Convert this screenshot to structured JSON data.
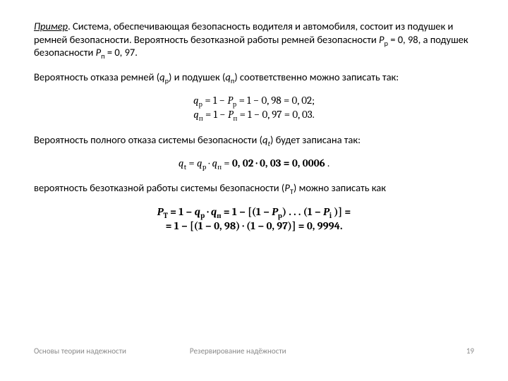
{
  "intro": {
    "example_label": "Пример",
    "text_part1": ". Система, обеспечивающая безопасность водителя и автомобиля, состоит из подушек и ремней безопасности. Вероятность безотказной работы ремней безопасности ",
    "Pp_sym": "P",
    "Pp_sub": "р",
    "Pp_eq": " = 0, 98, а подушек безопасности ",
    "Pn_sym": "P",
    "Pn_sub": "п",
    "Pn_eq": " = 0, 97."
  },
  "block1": {
    "text_a": "Вероятность отказа ремней (",
    "qp_sym": "q",
    "qp_sub": "р",
    "text_b": ") и подушек (",
    "qn_sym": "q",
    "qn_sub": "п",
    "text_c": ") соответственно можно записать так:",
    "formula_line1": "qр = 1 − Pр = 1 − 0, 98 = 0, 02;",
    "formula_line2": "qп = 1 − Pп = 1 − 0, 97 = 0, 03."
  },
  "block2": {
    "text_a": "Вероятность полного отказа системы безопасности (",
    "qt_sym": "q",
    "qt_sub": "t",
    "text_b": ") будет записана так:",
    "formula": "qt = qp · qп = 0, 02 · 0, 03 = 0, 0006 ."
  },
  "block3": {
    "text_a": "вероятность безотказной работы системы безопасности (",
    "PT_sym": "P",
    "PT_sub": "T",
    "text_b": ") можно записать как",
    "formula_line1": "PT = 1 − qp · qп = 1 − [(1 − Pр) . . . (1 − Pi )] =",
    "formula_line2": "= 1 − [(1 − 0, 98) · (1 − 0, 97)] = 0, 9994."
  },
  "footer": {
    "left": "Основы теории надежности",
    "center": "Резервирование надёжности",
    "page": "19"
  }
}
